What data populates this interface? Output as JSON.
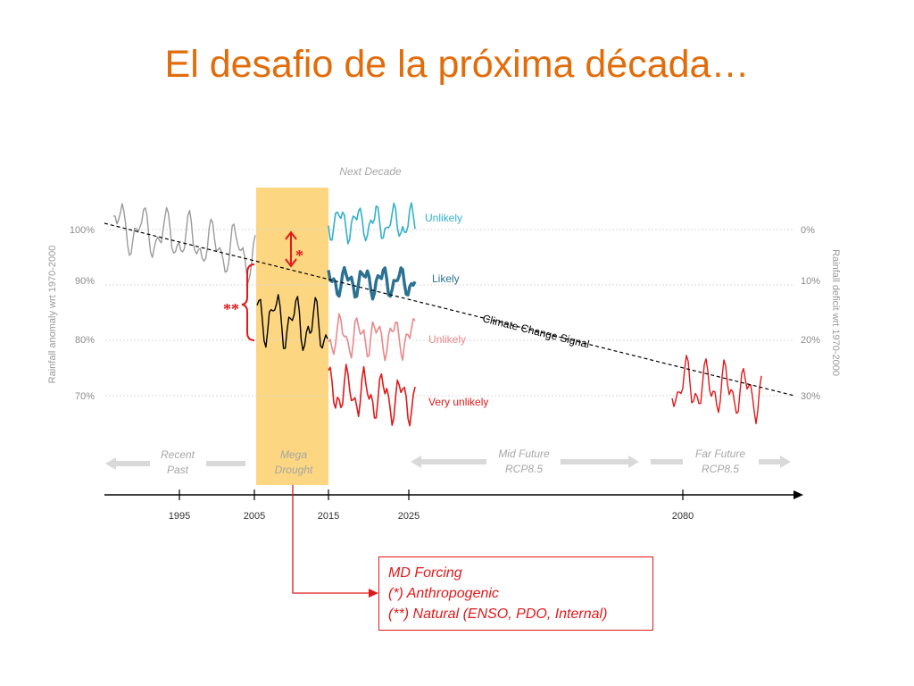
{
  "title": "El desafio de la próxima década…",
  "chart_data": {
    "type": "line",
    "ylabel": "Rainfall anomaly wrt 1970-2000",
    "ylabel_right": "Rainfall deficit wrt 1970-2000",
    "y_ticks": [
      "100%",
      "90%",
      "80%",
      "70%"
    ],
    "y_ticks_right": [
      "0%",
      "10%",
      "20%",
      "30%"
    ],
    "x_ticks": [
      "1995",
      "2005",
      "2015",
      "2025",
      "2080"
    ],
    "trend_label": "Climate Change Signal",
    "period_labels": {
      "next_decade": "Next Decade",
      "recent_past": [
        "Recent",
        "Past"
      ],
      "mega_drought": [
        "Mega",
        "Drought"
      ],
      "mid_future": [
        "Mid Future",
        "RCP8.5"
      ],
      "far_future": [
        "Far Future",
        "RCP8.5"
      ]
    },
    "scenarios": [
      {
        "name": "Unlikely",
        "color": "#31b0cc",
        "center": 100
      },
      {
        "name": "Likely",
        "color": "#2b7191",
        "center": 90
      },
      {
        "name": "Unlikely",
        "color": "#e8888a",
        "center": 80
      },
      {
        "name": "Very unlikely",
        "color": "#e0191b",
        "center": 70
      }
    ],
    "markers": {
      "single": "*",
      "double": "**"
    },
    "trend": {
      "x": [
        1984,
        2090
      ],
      "y": [
        101,
        70
      ]
    },
    "grid": true
  },
  "legend": {
    "line1": "MD Forcing",
    "line2": "(*) Anthropogenic",
    "line3": "(**) Natural (ENSO, PDO, Internal)"
  },
  "colors": {
    "accent": "#e36c0a",
    "drought_band": "#fcd680",
    "past_series": "#9a9a9a",
    "drought_series": "#000000",
    "marker_red": "#e0191b",
    "arrow_gray": "#d9d9d9"
  }
}
